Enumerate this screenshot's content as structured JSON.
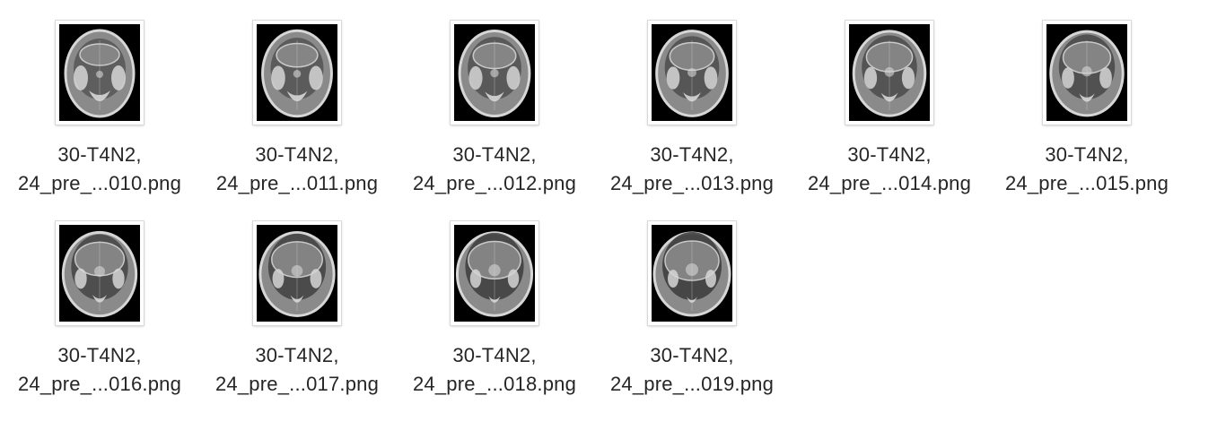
{
  "files": [
    {
      "line1": "30-T4N2,",
      "line2": "24_pre_...010.png",
      "thumb_icon": "mri-axial-scan-thumbnail"
    },
    {
      "line1": "30-T4N2,",
      "line2": "24_pre_...011.png",
      "thumb_icon": "mri-axial-scan-thumbnail"
    },
    {
      "line1": "30-T4N2,",
      "line2": "24_pre_...012.png",
      "thumb_icon": "mri-axial-scan-thumbnail"
    },
    {
      "line1": "30-T4N2,",
      "line2": "24_pre_...013.png",
      "thumb_icon": "mri-axial-scan-thumbnail"
    },
    {
      "line1": "30-T4N2,",
      "line2": "24_pre_...014.png",
      "thumb_icon": "mri-axial-scan-thumbnail"
    },
    {
      "line1": "30-T4N2,",
      "line2": "24_pre_...015.png",
      "thumb_icon": "mri-axial-scan-thumbnail"
    },
    {
      "line1": "30-T4N2,",
      "line2": "24_pre_...016.png",
      "thumb_icon": "mri-axial-scan-thumbnail"
    },
    {
      "line1": "30-T4N2,",
      "line2": "24_pre_...017.png",
      "thumb_icon": "mri-axial-scan-thumbnail"
    },
    {
      "line1": "30-T4N2,",
      "line2": "24_pre_...018.png",
      "thumb_icon": "mri-axial-scan-thumbnail"
    },
    {
      "line1": "30-T4N2,",
      "line2": "24_pre_...019.png",
      "thumb_icon": "mri-axial-scan-thumbnail"
    }
  ],
  "colors": {
    "scan_background": "#000000",
    "tissue_light": "#d6d6d6",
    "tissue_mid": "#8a8a8a",
    "tissue_dark": "#3a3a3a",
    "label_text": "#262626"
  }
}
